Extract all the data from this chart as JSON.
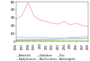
{
  "years": [
    1996,
    1997,
    1998,
    1999,
    2000,
    2001,
    2002,
    2003,
    2004,
    2005,
    2006,
    2007,
    2008
  ],
  "series": [
    {
      "label": "Salmonella",
      "color": "#f8b0b0",
      "linewidth": 0.6,
      "values": [
        280,
        330,
        490,
        320,
        270,
        250,
        230,
        220,
        250,
        210,
        230,
        200,
        190
      ]
    },
    {
      "label": "Staphylococcus",
      "color": "#a8c4f0",
      "linewidth": 0.5,
      "values": [
        55,
        55,
        50,
        52,
        55,
        50,
        48,
        45,
        48,
        52,
        55,
        58,
        62
      ]
    },
    {
      "label": "Clostridium",
      "color": "#d0a0e8",
      "linewidth": 0.5,
      "values": [
        25,
        28,
        26,
        30,
        28,
        32,
        30,
        35,
        33,
        38,
        40,
        38,
        42
      ]
    },
    {
      "label": "Bacillus cereus",
      "color": "#80d8e8",
      "linewidth": 0.5,
      "values": [
        18,
        22,
        20,
        22,
        24,
        26,
        28,
        30,
        32,
        34,
        36,
        34,
        38
      ]
    },
    {
      "label": "Virus",
      "color": "#a0e8a0",
      "linewidth": 0.5,
      "values": [
        8,
        10,
        12,
        14,
        16,
        20,
        22,
        26,
        28,
        32,
        36,
        38,
        42
      ]
    },
    {
      "label": "Autres agents",
      "color": "#c8c840",
      "linewidth": 0.4,
      "values": [
        10,
        10,
        11,
        10,
        10,
        9,
        8,
        10,
        9,
        8,
        9,
        8,
        8
      ]
    }
  ],
  "ylim": [
    0,
    500
  ],
  "yticks": [
    0,
    100,
    200,
    300,
    400,
    500
  ],
  "background_color": "#ffffff",
  "legend_fontsize": 1.8,
  "tick_fontsize": 2.0
}
